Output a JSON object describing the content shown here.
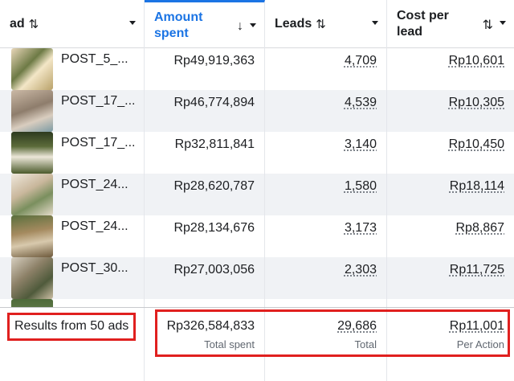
{
  "header": {
    "ad": {
      "label": "ad",
      "sort_icon": "sort-arrows-icon"
    },
    "amount_spent": {
      "label_line1": "Amount",
      "label_line2": "spent",
      "sort_icon": "arrow-down-icon",
      "color": "#1b74e4"
    },
    "leads": {
      "label": "Leads",
      "sort_icon": "sort-arrows-icon"
    },
    "cost_per_lead": {
      "label_line1": "Cost per",
      "label_line2": "lead",
      "sort_icon": "sort-arrows-icon"
    }
  },
  "rows": [
    {
      "name": "POST_5_...",
      "amount": "Rp49,919,363",
      "leads": "4,709",
      "cpl": "Rp10,601"
    },
    {
      "name": "POST_17_...",
      "amount": "Rp46,774,894",
      "leads": "4,539",
      "cpl": "Rp10,305"
    },
    {
      "name": "POST_17_...",
      "amount": "Rp32,811,841",
      "leads": "3,140",
      "cpl": "Rp10,450"
    },
    {
      "name": "POST_24...",
      "amount": "Rp28,620,787",
      "leads": "1,580",
      "cpl": "Rp18,114"
    },
    {
      "name": "POST_24...",
      "amount": "Rp28,134,676",
      "leads": "3,173",
      "cpl": "Rp8,867"
    },
    {
      "name": "POST_30...",
      "amount": "Rp27,003,056",
      "leads": "2,303",
      "cpl": "Rp11,725"
    }
  ],
  "footer": {
    "results_label": "Results from 50 ads",
    "total_spent": "Rp326,584,833",
    "total_spent_sub": "Total spent",
    "total_leads": "29,686",
    "total_leads_sub": "Total",
    "avg_cpl": "Rp11,001",
    "avg_cpl_sub": "Per Action"
  },
  "colors": {
    "highlight": "#e0201f",
    "accent": "#1b74e4",
    "alt_row": "#f0f2f5"
  }
}
